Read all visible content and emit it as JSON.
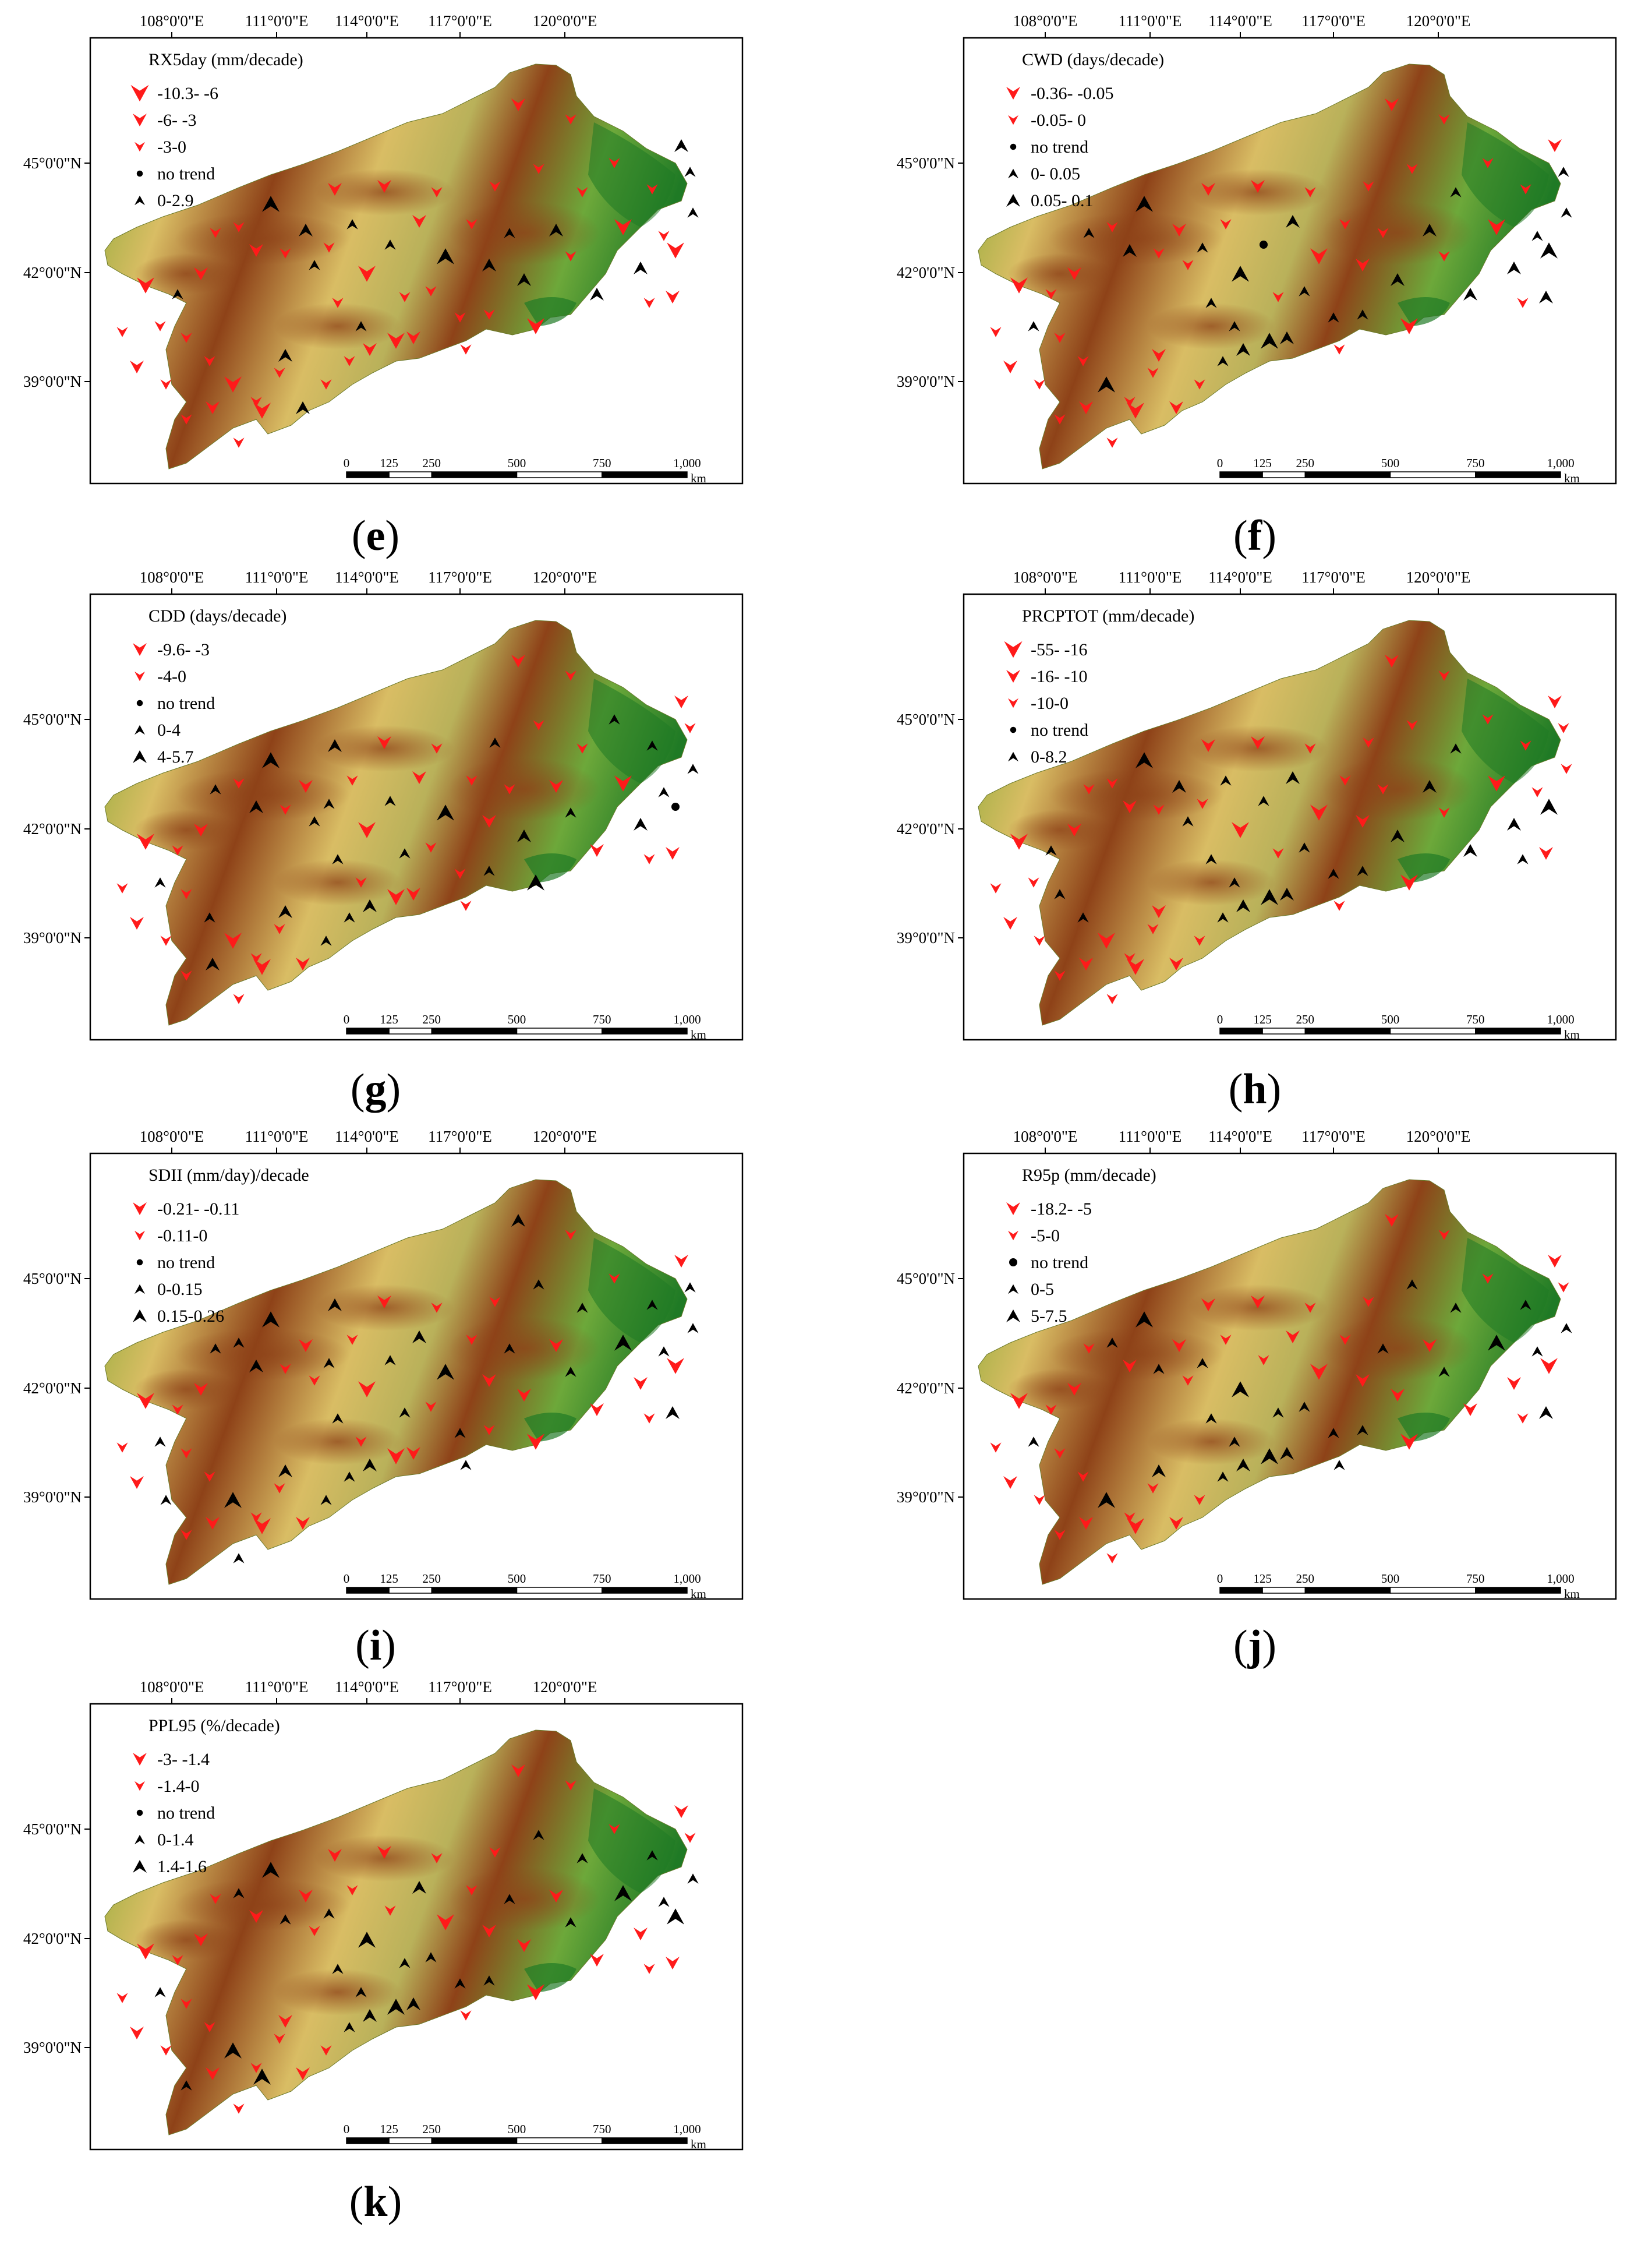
{
  "colors": {
    "decrease": "#ff1a1a",
    "increase": "#000000",
    "terrain_low": "#7da72f",
    "terrain_mid": "#d9bd64",
    "terrain_high": "#8e4218",
    "forest": "#1f7a25"
  },
  "axes": {
    "lon_labels": [
      "108°0'0\"E",
      "111°0'0\"E",
      "114°0'0\"E",
      "117°0'0\"E",
      "120°0'0\"E"
    ],
    "lat_labels": [
      "45°0'0\"N",
      "42°0'0\"N",
      "39°0'0\"N"
    ]
  },
  "scale_bar": {
    "ticks": [
      "0",
      "125",
      "250",
      "500",
      "750",
      "1,000"
    ],
    "unit": "km"
  },
  "panels": [
    {
      "id": "e",
      "label": "e",
      "legend_title": "RX5day (mm/decade)",
      "legend": [
        {
          "text": "-10.3- -6",
          "symbol": "down",
          "size": "large"
        },
        {
          "text": "-6- -3",
          "symbol": "down",
          "size": "medium"
        },
        {
          "text": "-3-0",
          "symbol": "down",
          "size": "small"
        },
        {
          "text": "no trend",
          "symbol": "dot",
          "size": "small"
        },
        {
          "text": "0-2.9",
          "symbol": "up",
          "size": "small"
        }
      ]
    },
    {
      "id": "f",
      "label": "f",
      "legend_title": "CWD (days/decade)",
      "legend": [
        {
          "text": "-0.36- -0.05",
          "symbol": "down",
          "size": "medium"
        },
        {
          "text": "-0.05- 0",
          "symbol": "down",
          "size": "small"
        },
        {
          "text": "no trend",
          "symbol": "dot",
          "size": "small"
        },
        {
          "text": "0- 0.05",
          "symbol": "up",
          "size": "small"
        },
        {
          "text": "0.05- 0.1",
          "symbol": "up",
          "size": "medium"
        }
      ]
    },
    {
      "id": "g",
      "label": "g",
      "legend_title": "CDD (days/decade)",
      "legend": [
        {
          "text": "-9.6- -3",
          "symbol": "down",
          "size": "medium"
        },
        {
          "text": "-4-0",
          "symbol": "down",
          "size": "small"
        },
        {
          "text": "no trend",
          "symbol": "dot",
          "size": "small"
        },
        {
          "text": "0-4",
          "symbol": "up",
          "size": "small"
        },
        {
          "text": "4-5.7",
          "symbol": "up",
          "size": "medium"
        }
      ]
    },
    {
      "id": "h",
      "label": "h",
      "legend_title": "PRCPTOT (mm/decade)",
      "legend": [
        {
          "text": "-55- -16",
          "symbol": "down",
          "size": "large"
        },
        {
          "text": "-16- -10",
          "symbol": "down",
          "size": "medium"
        },
        {
          "text": "-10-0",
          "symbol": "down",
          "size": "small"
        },
        {
          "text": "no trend",
          "symbol": "dot",
          "size": "small"
        },
        {
          "text": "0-8.2",
          "symbol": "up",
          "size": "small"
        }
      ]
    },
    {
      "id": "i",
      "label": "i",
      "legend_title": "SDII (mm/day)/decade",
      "legend": [
        {
          "text": "-0.21- -0.11",
          "symbol": "down",
          "size": "medium"
        },
        {
          "text": "-0.11-0",
          "symbol": "down",
          "size": "small"
        },
        {
          "text": "no trend",
          "symbol": "dot",
          "size": "small"
        },
        {
          "text": "0-0.15",
          "symbol": "up",
          "size": "small"
        },
        {
          "text": "0.15-0.26",
          "symbol": "up",
          "size": "medium"
        }
      ]
    },
    {
      "id": "j",
      "label": "j",
      "legend_title": "R95p (mm/decade)",
      "legend": [
        {
          "text": "-18.2- -5",
          "symbol": "down",
          "size": "medium"
        },
        {
          "text": "-5-0",
          "symbol": "down",
          "size": "small"
        },
        {
          "text": "no trend",
          "symbol": "dot",
          "size": "medium"
        },
        {
          "text": "0-5",
          "symbol": "up",
          "size": "small"
        },
        {
          "text": "5-7.5",
          "symbol": "up",
          "size": "medium"
        }
      ]
    },
    {
      "id": "k",
      "label": "k",
      "legend_title": "PPL95 (%/decade)",
      "legend": [
        {
          "text": "-3- -1.4",
          "symbol": "down",
          "size": "medium"
        },
        {
          "text": "-1.4-0",
          "symbol": "down",
          "size": "small"
        },
        {
          "text": "no trend",
          "symbol": "dot",
          "size": "small"
        },
        {
          "text": "0-1.4",
          "symbol": "up",
          "size": "small"
        },
        {
          "text": "1.4-1.6",
          "symbol": "up",
          "size": "medium"
        }
      ]
    }
  ]
}
